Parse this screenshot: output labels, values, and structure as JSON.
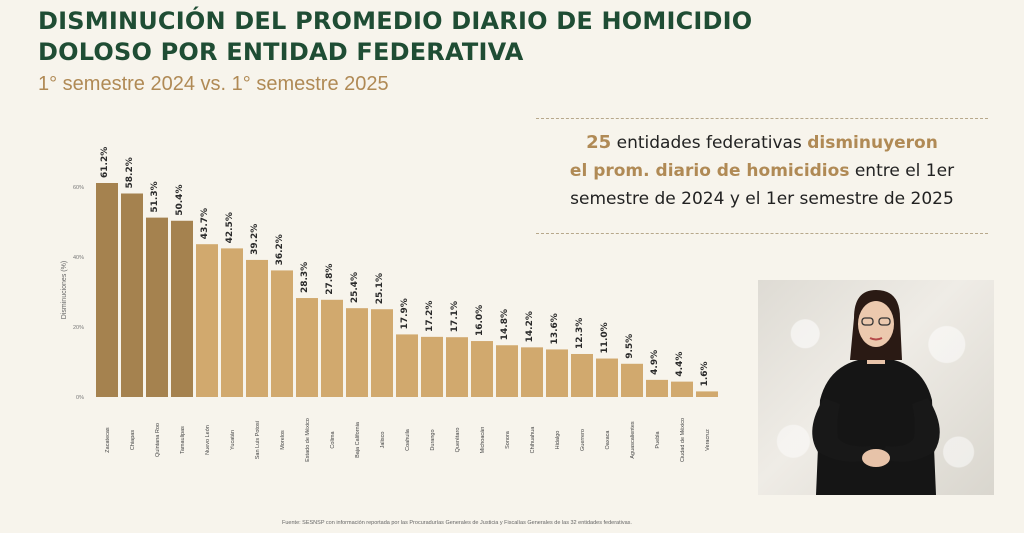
{
  "header": {
    "title": "DISMINUCIÓN DEL PROMEDIO DIARIO DE HOMICIDIO DOLOSO POR ENTIDAD FEDERATIVA",
    "subtitle": "1° semestre 2024 vs. 1° semestre 2025"
  },
  "callout": {
    "count": "25",
    "text_1": " entidades federativas ",
    "highlight_1": "disminuyeron",
    "highlight_2": "el prom. diario de homicidios",
    "text_2": " entre el 1er semestre de 2024 y el 1er semestre de 2025"
  },
  "footer": {
    "source": "Fuente: SESNSP con información reportada por las Procuradurías Generales de Justicia y Fiscalías Generales de las 32 entidades federativas."
  },
  "colors": {
    "dark_bar": "#a5824f",
    "light_bar": "#d1a96e",
    "title": "#1f4d34",
    "accent": "#b08a55"
  },
  "chart_data": {
    "type": "bar",
    "ylabel": "Disminuciones (%)",
    "ylim": [
      0,
      65
    ],
    "yticks": [
      0,
      20,
      40,
      60
    ],
    "ytick_labels": [
      "0%",
      "20%",
      "40%",
      "60%"
    ],
    "grid": false,
    "dark_count": 4,
    "categories": [
      "Zacatecas",
      "Chiapas",
      "Quintana Roo",
      "Tamaulipas",
      "Nuevo León",
      "Yucatán",
      "San Luis Potosí",
      "Morelos",
      "Estado de México",
      "Colima",
      "Baja California",
      "Jalisco",
      "Coahuila",
      "Durango",
      "Querétaro",
      "Michoacán",
      "Sonora",
      "Chihuahua",
      "Hidalgo",
      "Guerrero",
      "Oaxaca",
      "Aguascalientes",
      "Puebla",
      "Ciudad de México",
      "Veracruz"
    ],
    "values": [
      61.2,
      58.2,
      51.3,
      50.4,
      43.7,
      42.5,
      39.2,
      36.2,
      28.3,
      27.8,
      25.4,
      25.1,
      17.9,
      17.2,
      17.1,
      16.0,
      14.8,
      14.2,
      13.6,
      12.3,
      11.0,
      9.5,
      4.9,
      4.4,
      1.6
    ],
    "data_labels": [
      "61.2%",
      "58.2%",
      "51.3%",
      "50.4%",
      "43.7%",
      "42.5%",
      "39.2%",
      "36.2%",
      "28.3%",
      "27.8%",
      "25.4%",
      "25.1%",
      "17.9%",
      "17.2%",
      "17.1%",
      "16.0%",
      "14.8%",
      "14.2%",
      "13.6%",
      "12.3%",
      "11.0%",
      "9.5%",
      "4.9%",
      "4.4%",
      "1.6%"
    ]
  }
}
